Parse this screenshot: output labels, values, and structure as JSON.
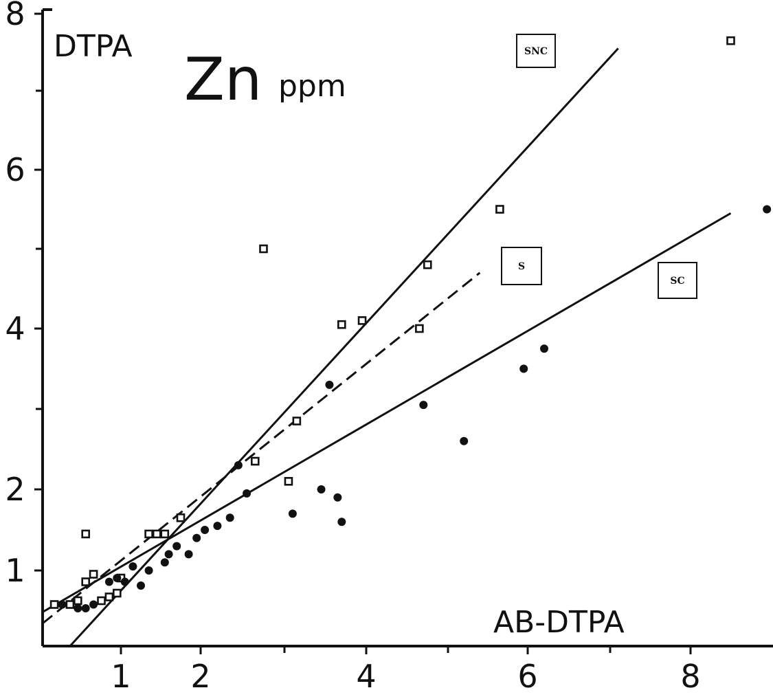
{
  "chart_data": {
    "type": "scatter",
    "title": "Zn",
    "subtitle": "ppm",
    "ylabel": "DTPA",
    "xlabel": "AB-DTPA",
    "xlim": [
      0,
      9
    ],
    "ylim": [
      0,
      8
    ],
    "x_ticks": [
      {
        "value": 1,
        "label": "1"
      },
      {
        "value": 2,
        "label": "2"
      },
      {
        "value": 4,
        "label": "4"
      },
      {
        "value": 6,
        "label": "6"
      },
      {
        "value": 8,
        "label": "8"
      }
    ],
    "x_minor_ticks": [
      3,
      5,
      7
    ],
    "y_ticks": [
      {
        "value": 1,
        "label": "1"
      },
      {
        "value": 2,
        "label": "2"
      },
      {
        "value": 4,
        "label": "4"
      },
      {
        "value": 6,
        "label": "6"
      },
      {
        "value": 8,
        "label": "8"
      }
    ],
    "y_minor_ticks": [
      3,
      5,
      7
    ],
    "grid": false,
    "series": [
      {
        "name": "SNC",
        "marker": "open-square",
        "line_style": "solid",
        "line": [
          [
            0.35,
            0.0
          ],
          [
            7.1,
            7.55
          ]
        ],
        "points": [
          [
            0.15,
            0.55
          ],
          [
            0.35,
            0.55
          ],
          [
            0.45,
            0.6
          ],
          [
            0.55,
            0.85
          ],
          [
            0.55,
            1.45
          ],
          [
            0.65,
            0.95
          ],
          [
            0.75,
            0.6
          ],
          [
            0.85,
            0.65
          ],
          [
            0.95,
            0.7
          ],
          [
            1.0,
            0.9
          ],
          [
            1.35,
            1.45
          ],
          [
            1.45,
            1.45
          ],
          [
            1.55,
            1.45
          ],
          [
            1.75,
            1.65
          ],
          [
            2.75,
            5.0
          ],
          [
            3.7,
            4.05
          ],
          [
            3.95,
            4.1
          ],
          [
            4.75,
            4.8
          ],
          [
            5.65,
            5.5
          ],
          [
            8.5,
            7.65
          ]
        ]
      },
      {
        "name": "S",
        "marker": "open-square",
        "line_style": "dashed",
        "line": [
          [
            0.0,
            0.3
          ],
          [
            5.4,
            4.7
          ]
        ],
        "points": [
          [
            2.65,
            2.35
          ],
          [
            3.15,
            2.85
          ],
          [
            3.05,
            2.1
          ],
          [
            4.65,
            4.0
          ]
        ]
      },
      {
        "name": "SC",
        "marker": "filled-circle",
        "line_style": "solid",
        "line": [
          [
            0.0,
            0.45
          ],
          [
            8.5,
            5.45
          ]
        ],
        "points": [
          [
            0.25,
            0.55
          ],
          [
            0.45,
            0.5
          ],
          [
            0.55,
            0.5
          ],
          [
            0.65,
            0.55
          ],
          [
            0.85,
            0.85
          ],
          [
            0.95,
            0.9
          ],
          [
            1.05,
            0.85
          ],
          [
            1.15,
            1.05
          ],
          [
            1.25,
            0.8
          ],
          [
            1.35,
            1.0
          ],
          [
            1.55,
            1.1
          ],
          [
            1.6,
            1.2
          ],
          [
            1.7,
            1.3
          ],
          [
            1.85,
            1.2
          ],
          [
            1.95,
            1.4
          ],
          [
            2.05,
            1.5
          ],
          [
            2.2,
            1.55
          ],
          [
            2.35,
            1.65
          ],
          [
            2.45,
            2.3
          ],
          [
            2.55,
            1.95
          ],
          [
            3.1,
            1.7
          ],
          [
            3.45,
            2.0
          ],
          [
            3.55,
            3.3
          ],
          [
            3.65,
            1.9
          ],
          [
            3.7,
            1.6
          ],
          [
            4.7,
            3.05
          ],
          [
            5.2,
            2.6
          ],
          [
            5.95,
            3.5
          ],
          [
            6.2,
            3.75
          ],
          [
            8.95,
            5.5
          ]
        ]
      }
    ],
    "annotations": [
      {
        "label": "SNC",
        "anchor": "top-right"
      },
      {
        "label": "S",
        "anchor": "right-middle"
      },
      {
        "label": "SC",
        "anchor": "right-middle"
      }
    ]
  }
}
